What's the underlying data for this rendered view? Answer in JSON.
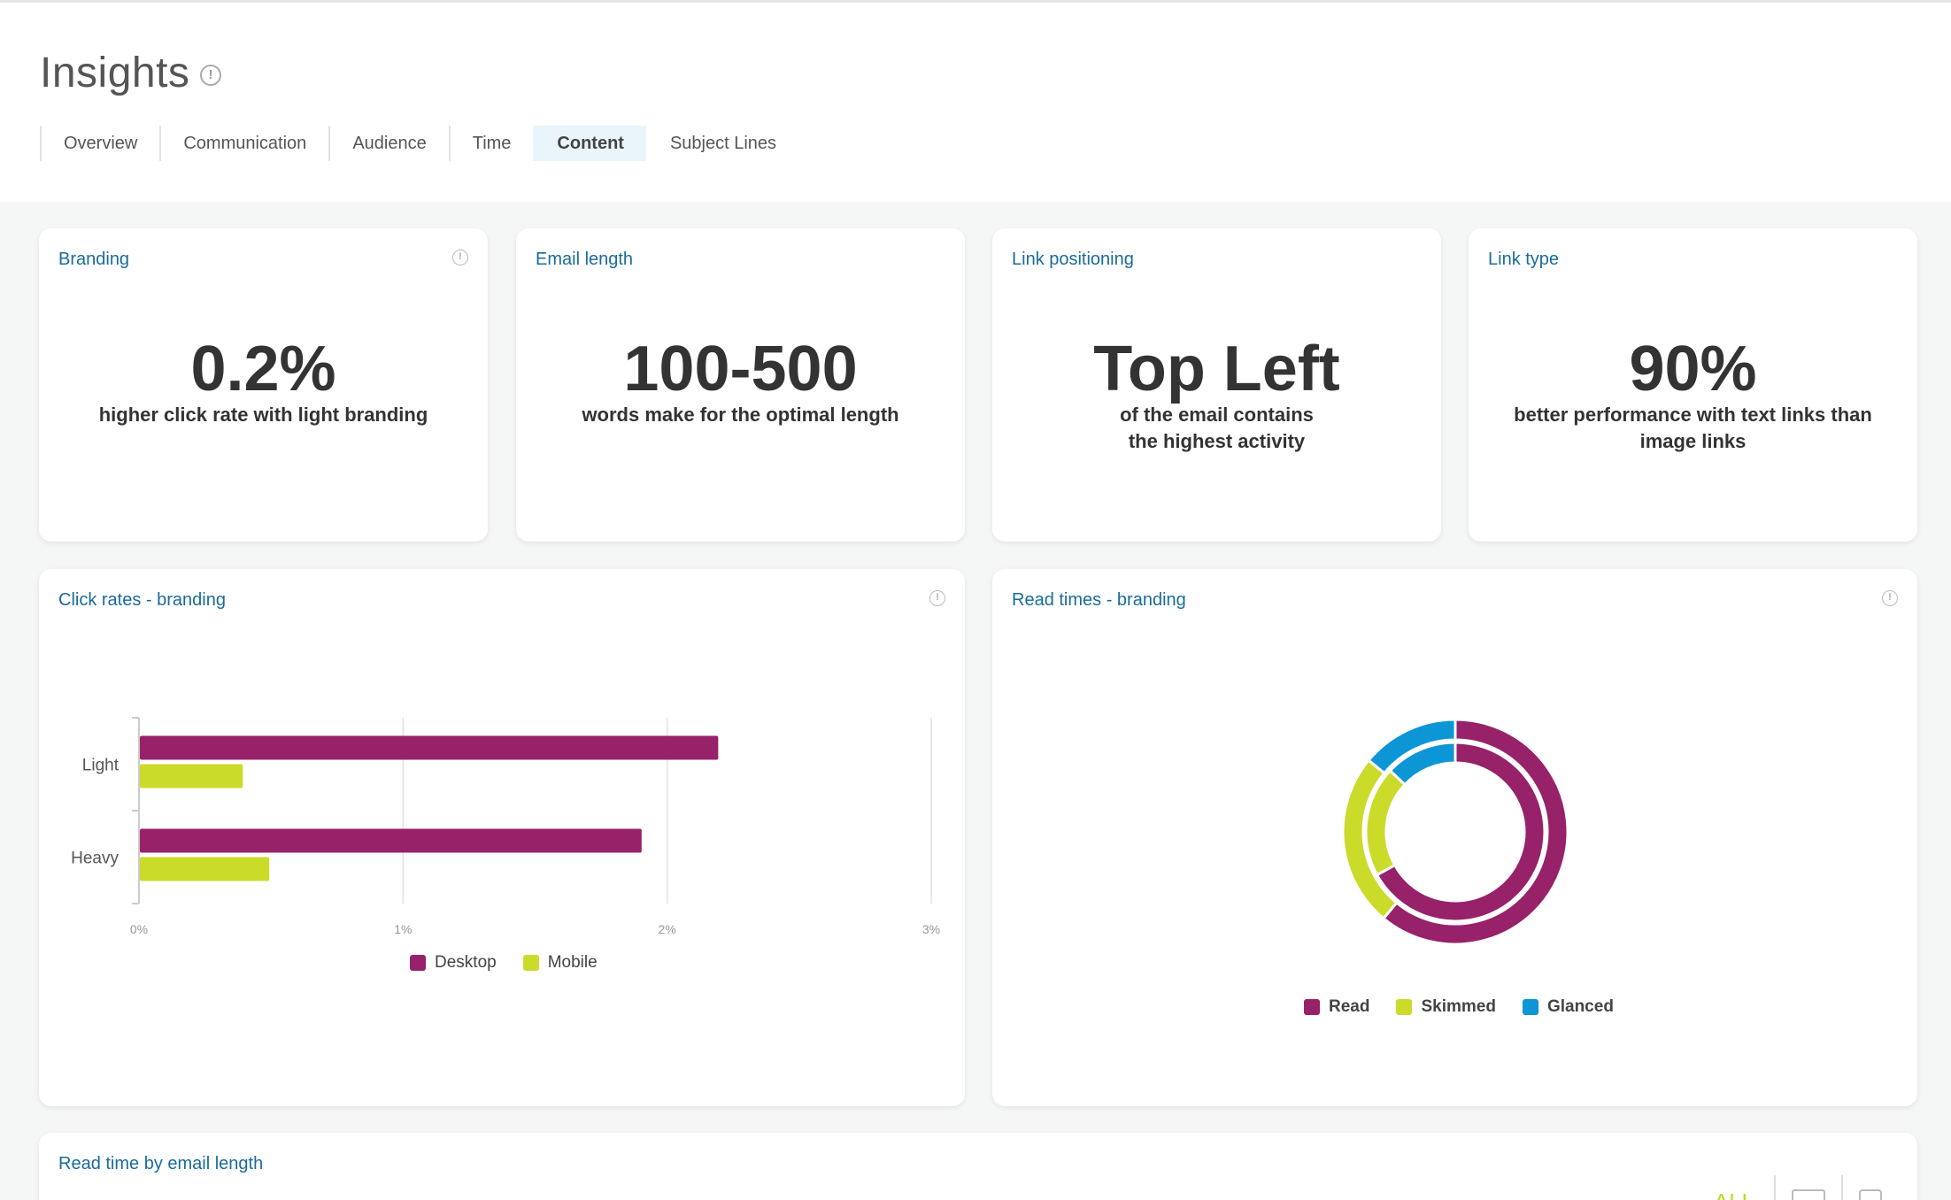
{
  "header": {
    "title": "Insights",
    "tabs": [
      {
        "label": "Overview",
        "active": false
      },
      {
        "label": "Communication",
        "active": false
      },
      {
        "label": "Audience",
        "active": false
      },
      {
        "label": "Time",
        "active": false
      },
      {
        "label": "Content",
        "active": true
      },
      {
        "label": "Subject Lines",
        "active": false
      }
    ]
  },
  "stats": [
    {
      "title": "Branding",
      "value": "0.2%",
      "description": "higher click rate with light branding"
    },
    {
      "title": "Email length",
      "value": "100-500",
      "description": "words make for the optimal length"
    },
    {
      "title": "Link positioning",
      "value": "Top Left",
      "description": "of the email contains the highest activity"
    },
    {
      "title": "Link type",
      "value": "90%",
      "description": "better performance with text links than image links"
    }
  ],
  "click_rates": {
    "title": "Click rates - branding"
  },
  "read_times": {
    "title": "Read times - branding"
  },
  "read_time_length": {
    "title": "Read time by email length",
    "toggle_all": "ALL"
  },
  "colors": {
    "desktop": "#97226a",
    "mobile": "#cbdb2a",
    "read": "#97226a",
    "skimmed": "#cbdb2a",
    "glanced": "#0d96d6",
    "title": "#1a6b9c"
  },
  "chart_data": [
    {
      "type": "bar",
      "orientation": "horizontal",
      "categories": [
        "Light",
        "Heavy"
      ],
      "series": [
        {
          "name": "Desktop",
          "values": [
            2.19,
            1.9
          ]
        },
        {
          "name": "Mobile",
          "values": [
            0.39,
            0.49
          ]
        }
      ],
      "xlim": [
        0,
        3
      ],
      "xticks": [
        "0%",
        "1%",
        "2%",
        "3%"
      ],
      "grid": true,
      "legend": "bottom"
    },
    {
      "type": "pie",
      "variant": "double-donut",
      "categories": [
        "Read",
        "Skimmed",
        "Glanced"
      ],
      "series": [
        {
          "ring": "outer",
          "values": [
            61,
            25,
            14
          ]
        },
        {
          "ring": "inner",
          "values": [
            67,
            20,
            13
          ]
        }
      ],
      "legend": "bottom"
    }
  ]
}
